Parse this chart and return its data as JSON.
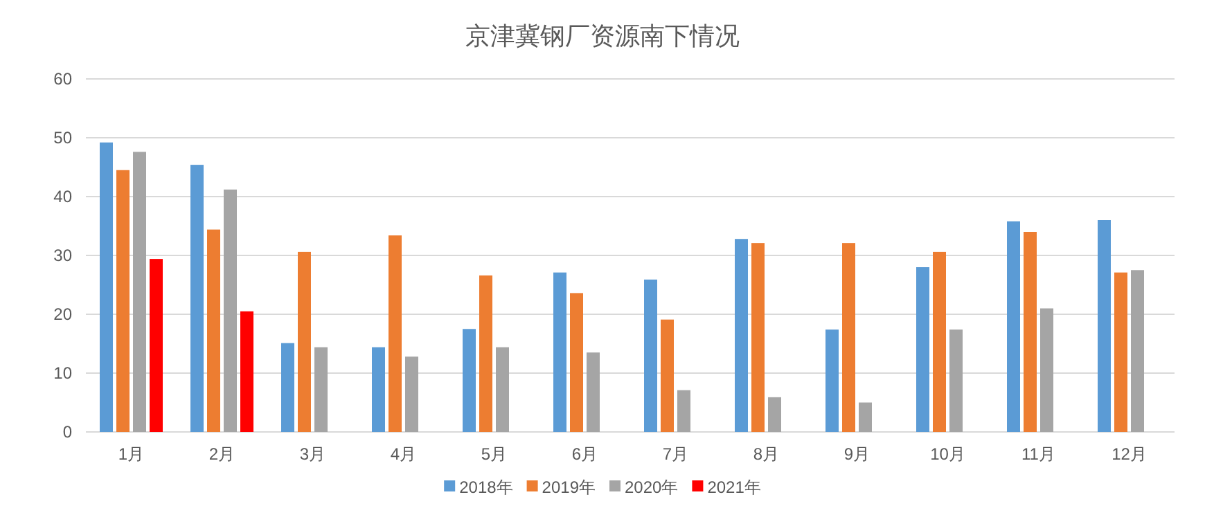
{
  "chart_data": {
    "type": "bar",
    "title": "京津冀钢厂资源南下情况",
    "categories": [
      "1月",
      "2月",
      "3月",
      "4月",
      "5月",
      "6月",
      "7月",
      "8月",
      "9月",
      "10月",
      "11月",
      "12月"
    ],
    "series": [
      {
        "name": "2018年",
        "color": "#5b9bd5",
        "values": [
          49.2,
          45.4,
          15.1,
          14.4,
          17.5,
          27.1,
          25.9,
          32.8,
          17.4,
          28.0,
          35.8,
          36.0
        ]
      },
      {
        "name": "2019年",
        "color": "#ed7d31",
        "values": [
          44.5,
          34.4,
          30.6,
          33.4,
          26.6,
          23.6,
          19.1,
          32.1,
          32.1,
          30.6,
          34.0,
          27.1
        ]
      },
      {
        "name": "2020年",
        "color": "#a5a5a5",
        "values": [
          47.6,
          41.2,
          14.4,
          12.8,
          14.4,
          13.5,
          7.1,
          5.9,
          5.0,
          17.4,
          21.0,
          27.5
        ]
      },
      {
        "name": "2021年",
        "color": "#ff0000",
        "values": [
          29.4,
          20.5,
          null,
          null,
          null,
          null,
          null,
          null,
          null,
          null,
          null,
          null
        ]
      }
    ],
    "ylim": [
      0,
      60
    ],
    "yticks": [
      0,
      10,
      20,
      30,
      40,
      50,
      60
    ],
    "grid": "y",
    "legend": "bottom"
  }
}
